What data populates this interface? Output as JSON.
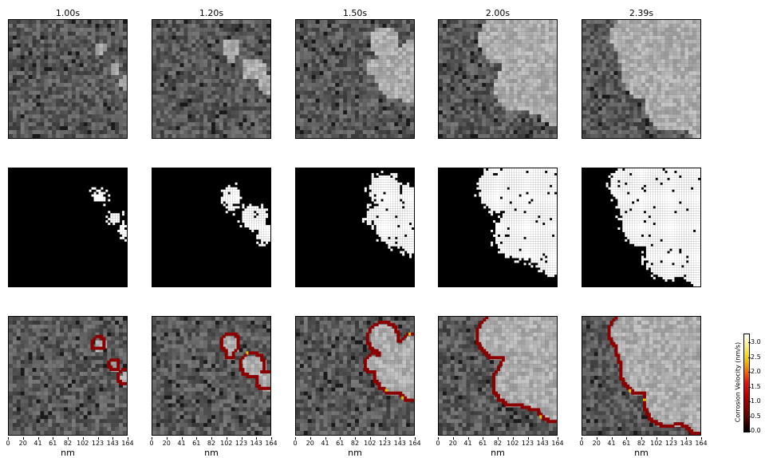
{
  "columns": [
    {
      "time": "1.00s"
    },
    {
      "time": "1.20s"
    },
    {
      "time": "1.50s"
    },
    {
      "time": "2.00s"
    },
    {
      "time": "2.39s"
    }
  ],
  "rows": [
    "microscopy-image",
    "binary-mask",
    "velocity-overlay"
  ],
  "x_axis": {
    "label": "nm",
    "ticks": [
      "0",
      "20",
      "41",
      "61",
      "82",
      "102",
      "123",
      "143",
      "164"
    ]
  },
  "colorbar": {
    "label": "Corrosion Velocity (nm/s)",
    "ticks": [
      "0.0",
      "0.5",
      "1.0",
      "1.5",
      "2.0",
      "2.5",
      "3.0"
    ],
    "range": [
      0.0,
      3.3
    ],
    "colors": [
      "#000000",
      "#8b0000",
      "#d01010",
      "#f08000",
      "#f0e000",
      "#ffffff"
    ]
  },
  "colors": {
    "texture_dark": "#4a4a4a",
    "texture_light": "#bdbdbd",
    "mask_fg": "#ffffff",
    "mask_bg": "#000000",
    "contour": "#8b0000",
    "contour_hot": "#e0c000"
  }
}
